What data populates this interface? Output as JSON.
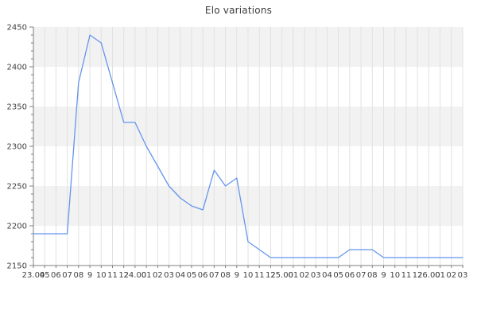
{
  "chart_data": {
    "type": "line",
    "title": "Elo variations",
    "x_tick_labels": [
      "23.04",
      "05",
      "06",
      "07",
      "08",
      "9",
      "10",
      "11",
      "12",
      "24.00",
      "01",
      "02",
      "03",
      "04",
      "05",
      "06",
      "07",
      "08",
      "9",
      "10",
      "11",
      "12",
      "25.00",
      "01",
      "02",
      "03",
      "04",
      "05",
      "06",
      "07",
      "08",
      "9",
      "10",
      "11",
      "12",
      "26.00",
      "01",
      "02",
      "03"
    ],
    "series": [
      {
        "name": "Elo",
        "values": [
          2190,
          2190,
          2190,
          2190,
          2380,
          2440,
          2430,
          2380,
          2330,
          2330,
          2300,
          2275,
          2250,
          2235,
          2225,
          2220,
          2270,
          2250,
          2260,
          2180,
          2170,
          2160,
          2160,
          2160,
          2160,
          2160,
          2160,
          2160,
          2170,
          2170,
          2170,
          2160,
          2160,
          2160,
          2160,
          2160,
          2160,
          2160,
          2160
        ]
      }
    ],
    "ylim": [
      2150,
      2450
    ],
    "y_tick_labels": [
      "2150",
      "2200",
      "2250",
      "2300",
      "2350",
      "2400",
      "2450"
    ],
    "y_major_step": 50,
    "y_minor_step": 10,
    "legend": "none",
    "grid": "vertical line at every x tick, alternating horizontal background bands every 50 points",
    "colors": {
      "line": "#6495ed",
      "band": "#f2f2f2",
      "grid": "#e1e1e1",
      "spine": "#7f7f7f",
      "tick_text": "#3f3f3f",
      "title_text": "#3c3c3c",
      "background": "#ffffff"
    }
  }
}
